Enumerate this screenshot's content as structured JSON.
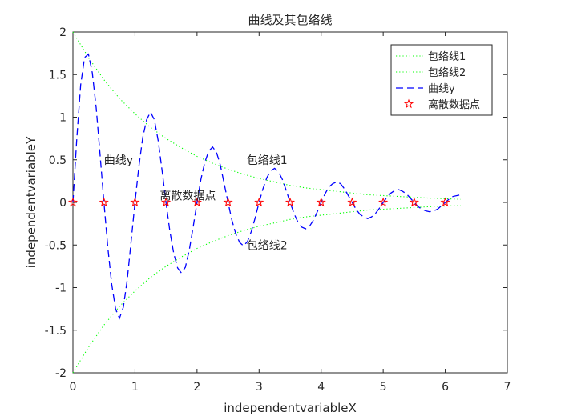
{
  "chart_data": {
    "type": "line",
    "title": "曲线及其包络线",
    "xlabel": "independentvariableX",
    "ylabel": "independentvariableY",
    "xlim": [
      0,
      7
    ],
    "ylim": [
      -2,
      2
    ],
    "xticks": [
      "0",
      "1",
      "2",
      "3",
      "4",
      "5",
      "6",
      "7"
    ],
    "yticks": [
      "-2",
      "-1.5",
      "-1",
      "-0.5",
      "0",
      "0.5",
      "1",
      "1.5",
      "2"
    ],
    "grid": false,
    "legend_position": "top-right",
    "series": [
      {
        "name": "包络线1",
        "style": "dotted",
        "color": "#00ff00",
        "x": [
          0,
          0.25,
          0.5,
          0.75,
          1,
          1.25,
          1.5,
          1.75,
          2,
          2.25,
          2.5,
          2.75,
          3,
          3.25,
          3.5,
          3.75,
          4,
          4.25,
          4.5,
          4.75,
          5,
          5.25,
          5.5,
          5.75,
          6,
          6.25
        ],
        "values": [
          2.0,
          1.7,
          1.44,
          1.22,
          1.04,
          0.88,
          0.75,
          0.64,
          0.54,
          0.46,
          0.39,
          0.33,
          0.28,
          0.24,
          0.2,
          0.17,
          0.15,
          0.13,
          0.11,
          0.09,
          0.08,
          0.07,
          0.06,
          0.05,
          0.043,
          0.036
        ]
      },
      {
        "name": "包络线2",
        "style": "dotted",
        "color": "#00ff00",
        "x": [
          0,
          0.25,
          0.5,
          0.75,
          1,
          1.25,
          1.5,
          1.75,
          2,
          2.25,
          2.5,
          2.75,
          3,
          3.25,
          3.5,
          3.75,
          4,
          4.25,
          4.5,
          4.75,
          5,
          5.25,
          5.5,
          5.75,
          6,
          6.25
        ],
        "values": [
          -2.0,
          -1.7,
          -1.44,
          -1.22,
          -1.04,
          -0.88,
          -0.75,
          -0.64,
          -0.54,
          -0.46,
          -0.39,
          -0.33,
          -0.28,
          -0.24,
          -0.2,
          -0.17,
          -0.15,
          -0.13,
          -0.11,
          -0.09,
          -0.08,
          -0.07,
          -0.06,
          -0.05,
          -0.043,
          -0.036
        ]
      },
      {
        "name": "曲线y",
        "style": "dashed",
        "color": "#0000ff",
        "x": [
          0,
          0.0625,
          0.125,
          0.1875,
          0.25,
          0.3125,
          0.375,
          0.4375,
          0.5,
          0.5625,
          0.625,
          0.6875,
          0.75,
          0.8125,
          0.875,
          0.9375,
          1,
          1.0625,
          1.125,
          1.1875,
          1.25,
          1.3125,
          1.375,
          1.4375,
          1.5,
          1.5625,
          1.625,
          1.6875,
          1.75,
          1.8125,
          1.875,
          1.9375,
          2,
          2.0625,
          2.125,
          2.1875,
          2.25,
          2.3125,
          2.375,
          2.4375,
          2.5,
          2.5625,
          2.625,
          2.6875,
          2.75,
          2.8125,
          2.875,
          2.9375,
          3,
          3.0625,
          3.125,
          3.1875,
          3.25,
          3.3125,
          3.375,
          3.4375,
          3.5,
          3.5625,
          3.625,
          3.6875,
          3.75,
          3.8125,
          3.875,
          3.9375,
          4,
          4.0625,
          4.125,
          4.1875,
          4.25,
          4.3125,
          4.375,
          4.4375,
          4.5,
          4.5625,
          4.625,
          4.6875,
          4.75,
          4.8125,
          4.875,
          4.9375,
          5,
          5.0625,
          5.125,
          5.1875,
          5.25,
          5.3125,
          5.375,
          5.4375,
          5.5,
          5.5625,
          5.625,
          5.6875,
          5.75,
          5.8125,
          5.875,
          5.9375,
          6,
          6.0625,
          6.125,
          6.1875,
          6.25
        ],
        "values": [
          0,
          0.75,
          1.38,
          1.7,
          1.74,
          1.52,
          1.11,
          0.56,
          0,
          -0.53,
          -0.96,
          -1.25,
          -1.36,
          -1.23,
          -0.91,
          -0.46,
          0,
          0.42,
          0.76,
          0.97,
          1.06,
          0.97,
          0.72,
          0.37,
          0,
          -0.34,
          -0.6,
          -0.77,
          -0.83,
          -0.76,
          -0.56,
          -0.29,
          0,
          0.27,
          0.47,
          0.6,
          0.65,
          0.59,
          0.44,
          0.22,
          0,
          -0.21,
          -0.37,
          -0.47,
          -0.51,
          -0.46,
          -0.34,
          -0.18,
          0,
          0.16,
          0.29,
          0.37,
          0.4,
          0.36,
          0.27,
          0.14,
          0,
          -0.13,
          -0.23,
          -0.29,
          -0.31,
          -0.28,
          -0.21,
          -0.11,
          0,
          0.1,
          0.18,
          0.22,
          0.24,
          0.22,
          0.16,
          0.08,
          0,
          -0.08,
          -0.14,
          -0.17,
          -0.19,
          -0.17,
          -0.13,
          -0.07,
          0,
          0.06,
          0.11,
          0.14,
          0.15,
          0.13,
          0.1,
          0.05,
          0,
          -0.05,
          -0.08,
          -0.1,
          -0.11,
          -0.1,
          -0.08,
          -0.04,
          0,
          0.04,
          0.07,
          0.08,
          0.09
        ]
      },
      {
        "name": "离散数据点",
        "style": "markers-pentagram",
        "color": "#ff0000",
        "x": [
          0,
          0.5,
          1,
          1.5,
          2,
          2.5,
          3,
          3.5,
          4,
          4.5,
          5,
          5.5,
          6
        ],
        "values": [
          0,
          0,
          0,
          0,
          0,
          0,
          0,
          0,
          0,
          0,
          0,
          0,
          0
        ]
      }
    ],
    "annotations": [
      {
        "text": "曲线y",
        "x": 0.5,
        "y": 0.5
      },
      {
        "text": "离散数据点",
        "x": 1.4,
        "y": 0.08
      },
      {
        "text": "包络线1",
        "x": 2.8,
        "y": 0.5
      },
      {
        "text": "包络线2",
        "x": 2.8,
        "y": -0.5
      }
    ]
  }
}
